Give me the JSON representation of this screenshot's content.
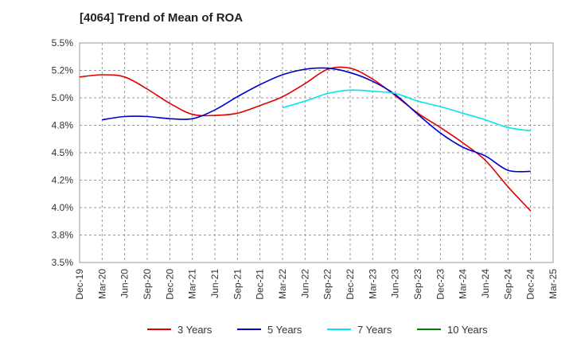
{
  "title": "[4064]  Trend of Mean of ROA",
  "chart_data": {
    "type": "line",
    "title": "[4064]  Trend of Mean of ROA",
    "xlabel": "",
    "ylabel": "",
    "ylim": [
      3.5,
      5.5
    ],
    "yticks": [
      3.5,
      3.75,
      4.0,
      4.25,
      4.5,
      4.75,
      5.0,
      5.25,
      5.5
    ],
    "ytick_labels": [
      "3.5%",
      "3.8%",
      "4.0%",
      "4.2%",
      "4.5%",
      "4.8%",
      "5.0%",
      "5.2%",
      "5.5%"
    ],
    "x_labels": [
      "Dec-19",
      "Mar-20",
      "Jun-20",
      "Sep-20",
      "Dec-20",
      "Mar-21",
      "Jun-21",
      "Sep-21",
      "Dec-21",
      "Mar-22",
      "Jun-22",
      "Sep-22",
      "Dec-22",
      "Mar-23",
      "Jun-23",
      "Sep-23",
      "Dec-23",
      "Mar-24",
      "Jun-24",
      "Sep-24",
      "Dec-24",
      "Mar-25"
    ],
    "grid": true,
    "legend_position": "bottom",
    "series": [
      {
        "name": "3 Years",
        "color": "#e00000",
        "start_index": 0,
        "values": [
          5.19,
          5.21,
          5.19,
          5.08,
          4.95,
          4.85,
          4.84,
          4.86,
          4.93,
          5.01,
          5.13,
          5.26,
          5.27,
          5.17,
          5.02,
          4.86,
          4.73,
          4.59,
          4.43,
          4.19,
          3.97
        ]
      },
      {
        "name": "5 Years",
        "color": "#0000cc",
        "start_index": 1,
        "values": [
          4.8,
          4.83,
          4.83,
          4.81,
          4.81,
          4.89,
          5.01,
          5.12,
          5.21,
          5.26,
          5.27,
          5.23,
          5.15,
          5.03,
          4.85,
          4.68,
          4.55,
          4.47,
          4.34,
          4.33
        ]
      },
      {
        "name": "7 Years",
        "color": "#00e5ee",
        "start_index": 9,
        "values": [
          4.91,
          4.97,
          5.04,
          5.07,
          5.06,
          5.04,
          4.97,
          4.92,
          4.86,
          4.8,
          4.73,
          4.7
        ]
      },
      {
        "name": "10 Years",
        "color": "#008000",
        "start_index": 0,
        "values": []
      }
    ]
  }
}
